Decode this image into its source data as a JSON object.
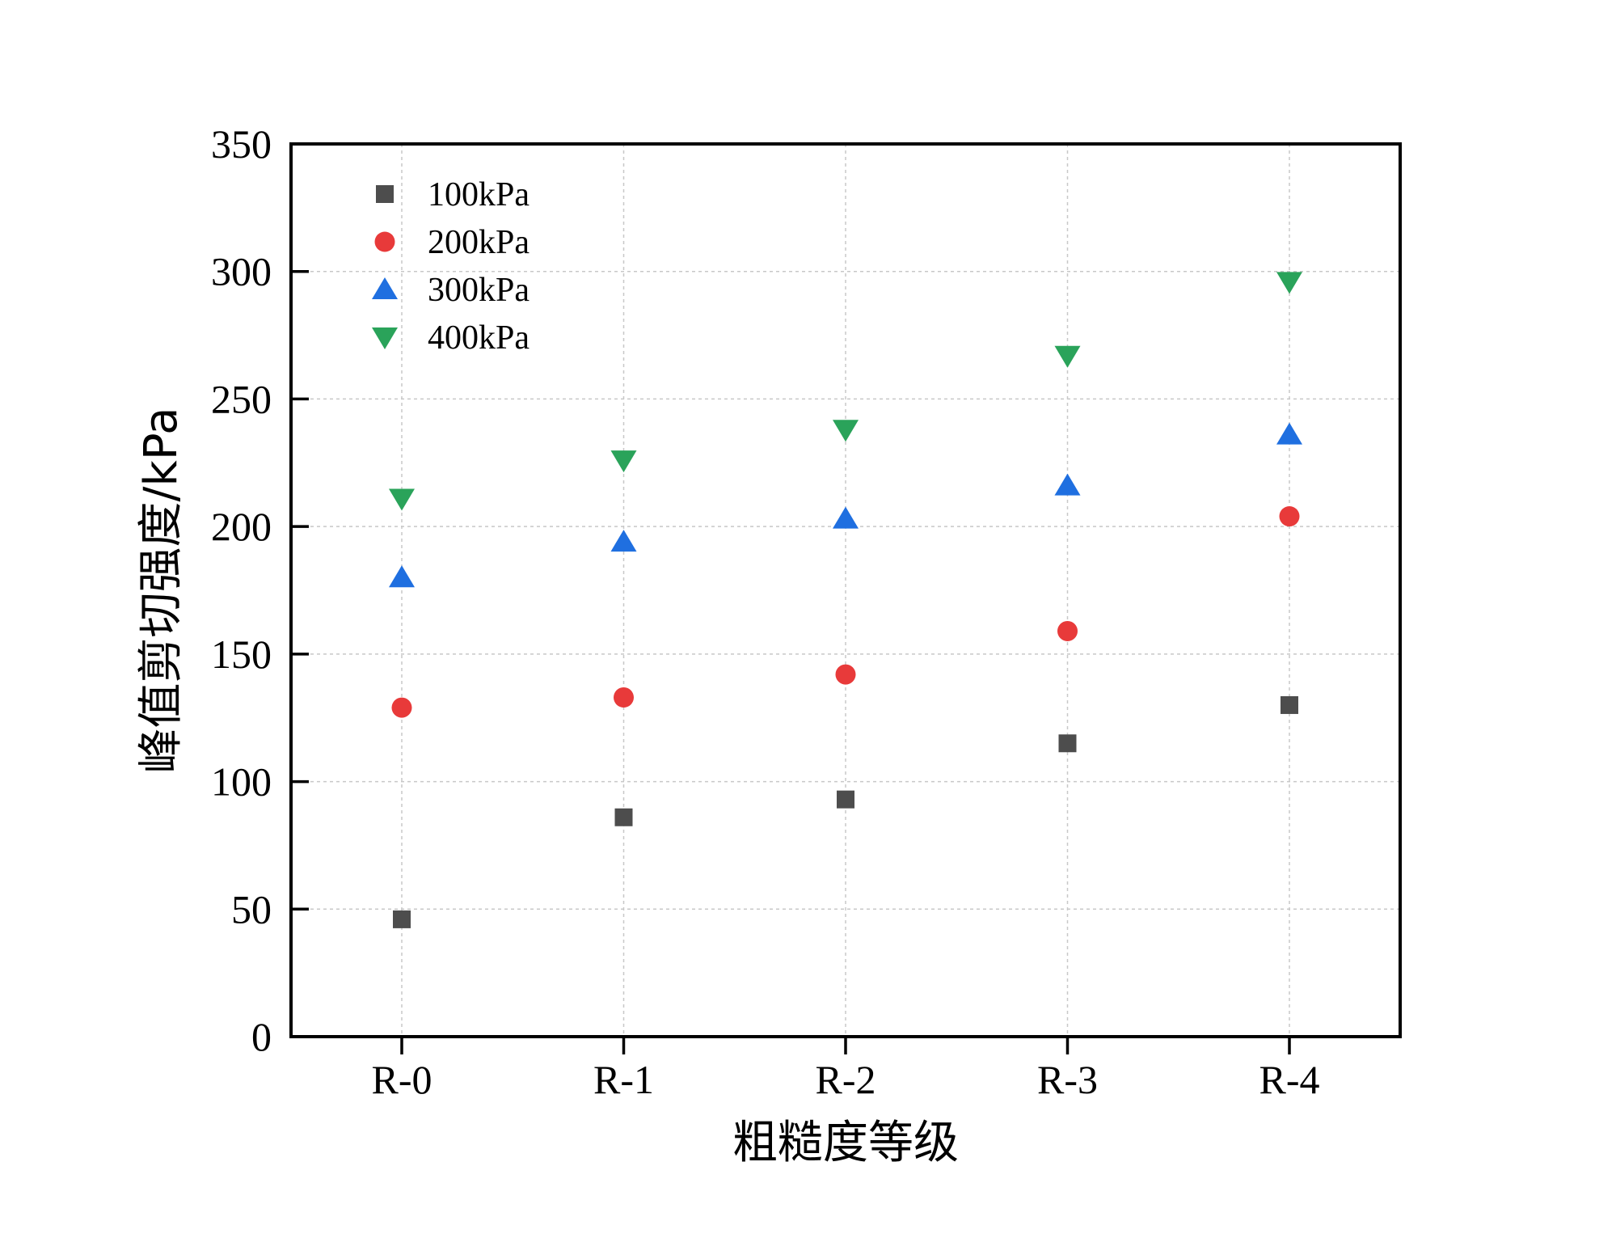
{
  "chart_data": {
    "type": "scatter",
    "title": "",
    "xlabel": "粗糙度等级",
    "ylabel": "峰值剪切强度/kPa",
    "categories": [
      "R-0",
      "R-1",
      "R-2",
      "R-3",
      "R-4"
    ],
    "ylim": [
      0,
      350
    ],
    "yticks": [
      0,
      50,
      100,
      150,
      200,
      250,
      300,
      350
    ],
    "grid": true,
    "legend_position": "top-left",
    "series": [
      {
        "name": "100kPa",
        "marker": "square",
        "color": "#4d4d4d",
        "values": [
          46,
          86,
          93,
          115,
          130
        ]
      },
      {
        "name": "200kPa",
        "marker": "circle",
        "color": "#e83a3a",
        "values": [
          129,
          133,
          142,
          159,
          204
        ]
      },
      {
        "name": "300kPa",
        "marker": "triangle-up",
        "color": "#1f6fe0",
        "values": [
          180,
          194,
          203,
          216,
          236
        ]
      },
      {
        "name": "400kPa",
        "marker": "triangle-down",
        "color": "#2aa35a",
        "values": [
          211,
          226,
          238,
          267,
          296
        ]
      }
    ]
  }
}
